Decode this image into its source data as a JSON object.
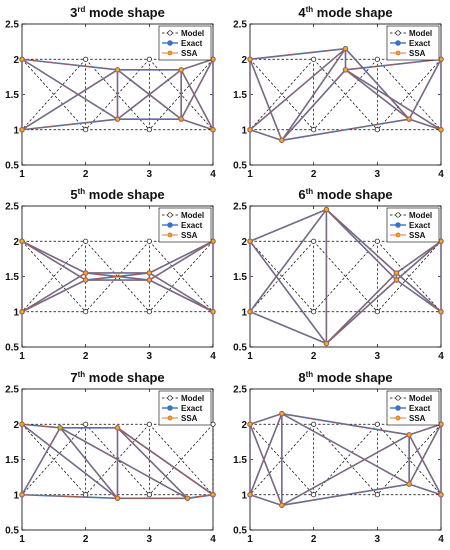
{
  "chart_data": [
    {
      "type": "line",
      "title": {
        "prefix": "3",
        "sup": "rd",
        "suffix": " mode shape"
      },
      "xlim": [
        1,
        4
      ],
      "ylim": [
        0.5,
        2.5
      ],
      "xticks": [
        "1",
        "2",
        "3",
        "4"
      ],
      "yticks": [
        "0.5",
        "1",
        "1.5",
        "2",
        "2.5"
      ],
      "xtick_values": [
        1,
        2,
        3,
        4
      ],
      "ytick_values": [
        0.5,
        1,
        1.5,
        2,
        2.5
      ],
      "grid": false,
      "legend": {
        "position": "top-right",
        "entries": [
          "Model",
          "Exact",
          "SSA"
        ]
      },
      "series": [
        {
          "name": "Model",
          "style": "dashed-black-open-circle",
          "x": [
            1,
            2,
            3,
            4,
            1,
            2,
            3,
            4
          ],
          "y": [
            2,
            2,
            2,
            2,
            1,
            1,
            1,
            1
          ]
        },
        {
          "name": "Exact",
          "style": "solid-blue-circle",
          "x": [
            1,
            2.5,
            3.5,
            4,
            1,
            2.5,
            3.5,
            4
          ],
          "y": [
            2,
            1.85,
            1.85,
            2,
            1,
            1.15,
            1.15,
            1
          ]
        },
        {
          "name": "SSA",
          "style": "solid-orange-circle",
          "x": [
            1,
            2.5,
            3.5,
            4,
            1,
            2.5,
            3.5,
            4
          ],
          "y": [
            2,
            1.85,
            1.85,
            2,
            1,
            1.15,
            1.15,
            1
          ]
        }
      ]
    },
    {
      "type": "line",
      "title": {
        "prefix": "4",
        "sup": "th",
        "suffix": " mode shape"
      },
      "xlim": [
        1,
        4
      ],
      "ylim": [
        0.5,
        2.5
      ],
      "xticks": [
        "1",
        "2",
        "3",
        "4"
      ],
      "yticks": [
        "0.5",
        "1",
        "1.5",
        "2",
        "2.5"
      ],
      "xtick_values": [
        1,
        2,
        3,
        4
      ],
      "ytick_values": [
        0.5,
        1,
        1.5,
        2,
        2.5
      ],
      "grid": false,
      "legend": {
        "position": "top-right",
        "entries": [
          "Model",
          "Exact",
          "SSA"
        ]
      },
      "series": [
        {
          "name": "Model",
          "style": "dashed-black-open-circle",
          "x": [
            1,
            2,
            3,
            4,
            1,
            2,
            3,
            4
          ],
          "y": [
            2,
            2,
            2,
            2,
            1,
            1,
            1,
            1
          ]
        },
        {
          "name": "Exact",
          "style": "solid-blue-circle",
          "x": [
            1,
            2.5,
            3.5,
            4,
            1,
            1.5,
            2.5,
            4
          ],
          "y": [
            2,
            2.15,
            1.15,
            1,
            1,
            0.85,
            1.85,
            2
          ]
        },
        {
          "name": "SSA",
          "style": "solid-orange-circle",
          "x": [
            1,
            2.5,
            3.5,
            4,
            1,
            1.5,
            2.5,
            4
          ],
          "y": [
            2,
            2.15,
            1.15,
            1,
            1,
            0.85,
            1.85,
            2
          ]
        }
      ]
    },
    {
      "type": "line",
      "title": {
        "prefix": "5",
        "sup": "th",
        "suffix": " mode shape"
      },
      "xlim": [
        1,
        4
      ],
      "ylim": [
        0.5,
        2.5
      ],
      "xticks": [
        "1",
        "2",
        "3",
        "4"
      ],
      "yticks": [
        "0.5",
        "1",
        "1.5",
        "2",
        "2.5"
      ],
      "xtick_values": [
        1,
        2,
        3,
        4
      ],
      "ytick_values": [
        0.5,
        1,
        1.5,
        2,
        2.5
      ],
      "grid": false,
      "legend": {
        "position": "top-right",
        "entries": [
          "Model",
          "Exact",
          "SSA"
        ]
      },
      "series": [
        {
          "name": "Model",
          "style": "dashed-black-open-circle",
          "x": [
            1,
            2,
            3,
            4,
            1,
            2,
            3,
            4
          ],
          "y": [
            2,
            2,
            2,
            2,
            1,
            1,
            1,
            1
          ]
        },
        {
          "name": "Exact",
          "style": "solid-blue-circle",
          "x": [
            1,
            2,
            3,
            4,
            1,
            2,
            3,
            4
          ],
          "y": [
            2,
            1.55,
            1.55,
            2,
            1,
            1.45,
            1.45,
            1
          ]
        },
        {
          "name": "SSA",
          "style": "solid-orange-circle",
          "x": [
            1,
            2,
            3,
            4,
            1,
            2,
            3,
            4
          ],
          "y": [
            2,
            1.55,
            1.55,
            2,
            1,
            1.45,
            1.45,
            1
          ]
        }
      ]
    },
    {
      "type": "line",
      "title": {
        "prefix": "6",
        "sup": "th",
        "suffix": " mode shape"
      },
      "xlim": [
        1,
        4
      ],
      "ylim": [
        0.5,
        2.5
      ],
      "xticks": [
        "1",
        "2",
        "3",
        "4"
      ],
      "yticks": [
        "0.5",
        "1",
        "1.5",
        "2",
        "2.5"
      ],
      "xtick_values": [
        1,
        2,
        3,
        4
      ],
      "ytick_values": [
        0.5,
        1,
        1.5,
        2,
        2.5
      ],
      "grid": false,
      "legend": {
        "position": "top-right",
        "entries": [
          "Model",
          "Exact",
          "SSA"
        ]
      },
      "series": [
        {
          "name": "Model",
          "style": "dashed-black-open-circle",
          "x": [
            1,
            2,
            3,
            4,
            1,
            2,
            3,
            4
          ],
          "y": [
            2,
            2,
            2,
            2,
            1,
            1,
            1,
            1
          ]
        },
        {
          "name": "Exact",
          "style": "solid-blue-circle",
          "x": [
            1,
            2.2,
            3.3,
            4,
            1,
            2.2,
            3.3,
            4
          ],
          "y": [
            2,
            2.45,
            1.55,
            2,
            1,
            0.55,
            1.45,
            1
          ]
        },
        {
          "name": "SSA",
          "style": "solid-orange-circle",
          "x": [
            1,
            2.2,
            3.3,
            4,
            1,
            2.2,
            3.3,
            4
          ],
          "y": [
            2,
            2.45,
            1.55,
            2,
            1,
            0.55,
            1.45,
            1
          ]
        }
      ]
    },
    {
      "type": "line",
      "title": {
        "prefix": "7",
        "sup": "th",
        "suffix": " mode shape"
      },
      "xlim": [
        1,
        4
      ],
      "ylim": [
        0.5,
        2.5
      ],
      "xticks": [
        "1",
        "2",
        "3",
        "4"
      ],
      "yticks": [
        "0.5",
        "1",
        "1.5",
        "2",
        "2.5"
      ],
      "xtick_values": [
        1,
        2,
        3,
        4
      ],
      "ytick_values": [
        0.5,
        1,
        1.5,
        2,
        2.5
      ],
      "grid": false,
      "legend": {
        "position": "top-right",
        "entries": [
          "Model",
          "Exact",
          "SSA"
        ]
      },
      "series": [
        {
          "name": "Model",
          "style": "dashed-black-open-circle",
          "x": [
            1,
            2,
            3,
            4,
            1,
            2,
            3,
            4
          ],
          "y": [
            2,
            2,
            2,
            2,
            1,
            1,
            1,
            1
          ]
        },
        {
          "name": "Exact",
          "style": "solid-blue-circle",
          "x": [
            1,
            1.6,
            2.5,
            4,
            1,
            2.5,
            3.6,
            4
          ],
          "y": [
            2,
            1.95,
            1.95,
            1,
            1,
            0.95,
            0.95,
            1
          ]
        },
        {
          "name": "SSA",
          "style": "solid-orange-circle",
          "x": [
            1,
            1.6,
            2.5,
            4,
            1,
            2.5,
            3.6,
            4
          ],
          "y": [
            2,
            1.95,
            1.95,
            1,
            1,
            0.95,
            0.95,
            1
          ]
        }
      ]
    },
    {
      "type": "line",
      "title": {
        "prefix": "8",
        "sup": "th",
        "suffix": " mode shape"
      },
      "xlim": [
        1,
        4
      ],
      "ylim": [
        0.5,
        2.5
      ],
      "xticks": [
        "1",
        "2",
        "3",
        "4"
      ],
      "yticks": [
        "0.5",
        "1",
        "1.5",
        "2",
        "2.5"
      ],
      "xtick_values": [
        1,
        2,
        3,
        4
      ],
      "ytick_values": [
        0.5,
        1,
        1.5,
        2,
        2.5
      ],
      "grid": false,
      "legend": {
        "position": "top-right",
        "entries": [
          "Model",
          "Exact",
          "SSA"
        ]
      },
      "series": [
        {
          "name": "Model",
          "style": "dashed-black-open-circle",
          "x": [
            1,
            2,
            3,
            4,
            1,
            2,
            3,
            4
          ],
          "y": [
            2,
            2,
            2,
            2,
            1,
            1,
            1,
            1
          ]
        },
        {
          "name": "Exact",
          "style": "solid-blue-circle",
          "x": [
            1,
            1.5,
            3.5,
            4,
            1,
            1.5,
            3.5,
            4
          ],
          "y": [
            2,
            2.15,
            1.85,
            2,
            1,
            0.85,
            1.15,
            1
          ]
        },
        {
          "name": "SSA",
          "style": "solid-orange-circle",
          "x": [
            1,
            1.5,
            3.5,
            4,
            1,
            1.5,
            3.5,
            4
          ],
          "y": [
            2,
            2.15,
            1.85,
            2,
            1,
            0.85,
            1.15,
            1
          ]
        }
      ]
    }
  ],
  "colors": {
    "model": "#000000",
    "exact": "#3b73c4",
    "ssa": "#d95319",
    "ssa_fill": "#edb120",
    "axis": "#000000"
  }
}
